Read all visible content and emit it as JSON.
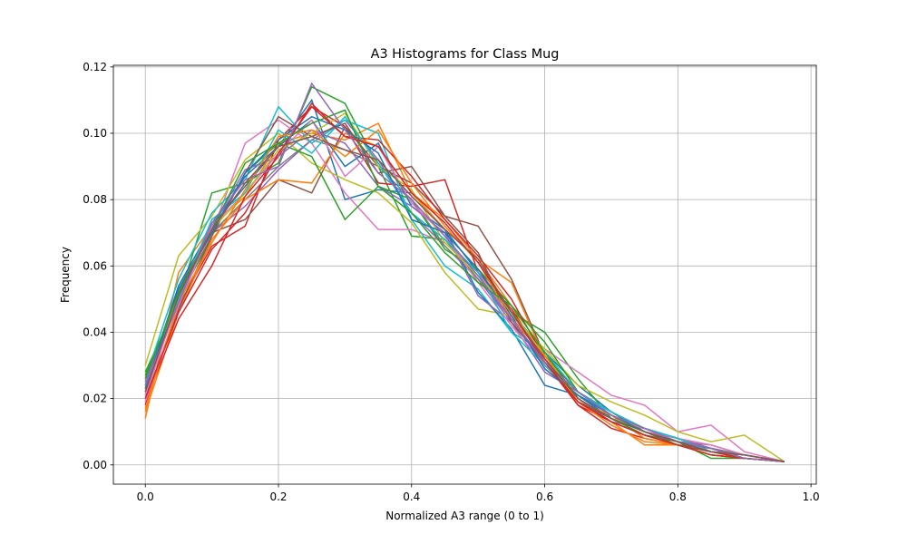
{
  "chart_data": {
    "type": "line",
    "title": "A3 Histograms for Class Mug",
    "xlabel": "Normalized A3 range (0 to 1)",
    "ylabel": "Frequency",
    "xlim": [
      -0.048,
      1.008
    ],
    "ylim": [
      -0.0058,
      0.1205
    ],
    "xticks": [
      0.0,
      0.2,
      0.4,
      0.6,
      0.8,
      1.0
    ],
    "xtick_labels": [
      "0.0",
      "0.2",
      "0.4",
      "0.6",
      "0.8",
      "1.0"
    ],
    "yticks": [
      0.0,
      0.02,
      0.04,
      0.06,
      0.08,
      0.1,
      0.12
    ],
    "ytick_labels": [
      "0.00",
      "0.02",
      "0.04",
      "0.06",
      "0.08",
      "0.10",
      "0.12"
    ],
    "grid": true,
    "legend": "none",
    "x": [
      0.0,
      0.05,
      0.1,
      0.15,
      0.2,
      0.25,
      0.3,
      0.35,
      0.4,
      0.45,
      0.5,
      0.55,
      0.6,
      0.65,
      0.7,
      0.75,
      0.8,
      0.85,
      0.9,
      0.96
    ],
    "series": [
      {
        "color": "#1f77b4",
        "values": [
          0.022,
          0.052,
          0.072,
          0.084,
          0.096,
          0.11,
          0.08,
          0.083,
          0.082,
          0.071,
          0.058,
          0.046,
          0.034,
          0.024,
          0.016,
          0.01,
          0.007,
          0.004,
          0.002,
          0.001
        ]
      },
      {
        "color": "#ff7f0e",
        "values": [
          0.014,
          0.058,
          0.072,
          0.081,
          0.097,
          0.1,
          0.098,
          0.103,
          0.082,
          0.071,
          0.062,
          0.048,
          0.03,
          0.02,
          0.013,
          0.006,
          0.006,
          0.004,
          0.002,
          0.001
        ]
      },
      {
        "color": "#2ca02c",
        "values": [
          0.028,
          0.05,
          0.082,
          0.085,
          0.091,
          0.114,
          0.109,
          0.09,
          0.069,
          0.068,
          0.056,
          0.046,
          0.04,
          0.026,
          0.014,
          0.009,
          0.007,
          0.002,
          0.002,
          0.001
        ]
      },
      {
        "color": "#d62728",
        "values": [
          0.018,
          0.048,
          0.066,
          0.072,
          0.098,
          0.108,
          0.102,
          0.085,
          0.084,
          0.086,
          0.058,
          0.047,
          0.031,
          0.018,
          0.011,
          0.008,
          0.006,
          0.004,
          0.002,
          0.001
        ]
      },
      {
        "color": "#9467bd",
        "values": [
          0.022,
          0.052,
          0.07,
          0.078,
          0.089,
          0.098,
          0.104,
          0.092,
          0.076,
          0.066,
          0.056,
          0.043,
          0.028,
          0.022,
          0.016,
          0.011,
          0.008,
          0.005,
          0.003,
          0.001
        ]
      },
      {
        "color": "#8c564b",
        "values": [
          0.021,
          0.05,
          0.07,
          0.074,
          0.086,
          0.082,
          0.102,
          0.09,
          0.085,
          0.075,
          0.072,
          0.056,
          0.033,
          0.022,
          0.016,
          0.01,
          0.006,
          0.005,
          0.003,
          0.001
        ]
      },
      {
        "color": "#e377c2",
        "values": [
          0.021,
          0.05,
          0.07,
          0.097,
          0.104,
          0.097,
          0.082,
          0.071,
          0.071,
          0.067,
          0.058,
          0.044,
          0.035,
          0.028,
          0.021,
          0.018,
          0.01,
          0.012,
          0.004,
          0.001
        ]
      },
      {
        "color": "#7f7f7f",
        "values": [
          0.024,
          0.054,
          0.07,
          0.08,
          0.09,
          0.098,
          0.095,
          0.09,
          0.08,
          0.066,
          0.056,
          0.044,
          0.03,
          0.021,
          0.014,
          0.011,
          0.008,
          0.005,
          0.003,
          0.001
        ]
      },
      {
        "color": "#bcbd22",
        "values": [
          0.03,
          0.063,
          0.075,
          0.092,
          0.1,
          0.091,
          0.086,
          0.082,
          0.073,
          0.058,
          0.047,
          0.045,
          0.035,
          0.024,
          0.019,
          0.015,
          0.01,
          0.007,
          0.009,
          0.001
        ]
      },
      {
        "color": "#17becf",
        "values": [
          0.026,
          0.056,
          0.076,
          0.086,
          0.108,
          0.097,
          0.104,
          0.1,
          0.074,
          0.06,
          0.053,
          0.04,
          0.034,
          0.022,
          0.016,
          0.011,
          0.008,
          0.004,
          0.003,
          0.001
        ]
      },
      {
        "color": "#1f77b4",
        "values": [
          0.023,
          0.054,
          0.072,
          0.087,
          0.096,
          0.104,
          0.09,
          0.097,
          0.078,
          0.071,
          0.052,
          0.041,
          0.024,
          0.021,
          0.014,
          0.01,
          0.007,
          0.005,
          0.002,
          0.001
        ]
      },
      {
        "color": "#ff7f0e",
        "values": [
          0.016,
          0.046,
          0.068,
          0.08,
          0.086,
          0.085,
          0.1,
          0.096,
          0.082,
          0.074,
          0.062,
          0.055,
          0.032,
          0.019,
          0.015,
          0.008,
          0.006,
          0.003,
          0.002,
          0.001
        ]
      },
      {
        "color": "#2ca02c",
        "values": [
          0.027,
          0.05,
          0.069,
          0.088,
          0.097,
          0.093,
          0.074,
          0.084,
          0.08,
          0.065,
          0.059,
          0.048,
          0.037,
          0.022,
          0.015,
          0.01,
          0.007,
          0.004,
          0.003,
          0.001
        ]
      },
      {
        "color": "#d62728",
        "values": [
          0.019,
          0.044,
          0.06,
          0.081,
          0.093,
          0.109,
          0.099,
          0.098,
          0.087,
          0.074,
          0.063,
          0.05,
          0.032,
          0.018,
          0.013,
          0.009,
          0.006,
          0.004,
          0.002,
          0.001
        ]
      },
      {
        "color": "#9467bd",
        "values": [
          0.025,
          0.051,
          0.072,
          0.089,
          0.093,
          0.101,
          0.097,
          0.084,
          0.078,
          0.07,
          0.051,
          0.043,
          0.032,
          0.02,
          0.013,
          0.011,
          0.007,
          0.006,
          0.003,
          0.001
        ]
      },
      {
        "color": "#8c564b",
        "values": [
          0.02,
          0.047,
          0.069,
          0.088,
          0.105,
          0.099,
          0.103,
          0.088,
          0.09,
          0.075,
          0.064,
          0.043,
          0.031,
          0.019,
          0.014,
          0.009,
          0.006,
          0.004,
          0.003,
          0.001
        ]
      },
      {
        "color": "#e377c2",
        "values": [
          0.019,
          0.048,
          0.072,
          0.082,
          0.094,
          0.104,
          0.087,
          0.096,
          0.079,
          0.069,
          0.055,
          0.042,
          0.03,
          0.021,
          0.015,
          0.01,
          0.008,
          0.006,
          0.003,
          0.001
        ]
      },
      {
        "color": "#bcbd22",
        "values": [
          0.022,
          0.052,
          0.071,
          0.082,
          0.095,
          0.1,
          0.106,
          0.09,
          0.083,
          0.067,
          0.057,
          0.046,
          0.033,
          0.02,
          0.014,
          0.011,
          0.007,
          0.005,
          0.002,
          0.001
        ]
      },
      {
        "color": "#17becf",
        "values": [
          0.024,
          0.05,
          0.074,
          0.082,
          0.101,
          0.094,
          0.105,
          0.091,
          0.076,
          0.068,
          0.058,
          0.04,
          0.03,
          0.021,
          0.016,
          0.011,
          0.008,
          0.004,
          0.003,
          0.001
        ]
      },
      {
        "color": "#1f77b4",
        "values": [
          0.023,
          0.053,
          0.07,
          0.088,
          0.098,
          0.105,
          0.101,
          0.094,
          0.074,
          0.07,
          0.059,
          0.045,
          0.029,
          0.021,
          0.015,
          0.01,
          0.007,
          0.005,
          0.002,
          0.001
        ]
      },
      {
        "color": "#ff7f0e",
        "values": [
          0.017,
          0.049,
          0.067,
          0.083,
          0.099,
          0.101,
          0.093,
          0.101,
          0.085,
          0.072,
          0.061,
          0.044,
          0.033,
          0.019,
          0.012,
          0.007,
          0.006,
          0.003,
          0.002,
          0.001
        ]
      },
      {
        "color": "#2ca02c",
        "values": [
          0.026,
          0.052,
          0.071,
          0.091,
          0.097,
          0.103,
          0.107,
          0.084,
          0.076,
          0.064,
          0.055,
          0.048,
          0.034,
          0.02,
          0.014,
          0.009,
          0.006,
          0.003,
          0.002,
          0.001
        ]
      },
      {
        "color": "#d62728",
        "values": [
          0.02,
          0.046,
          0.065,
          0.076,
          0.094,
          0.108,
          0.099,
          0.096,
          0.082,
          0.073,
          0.061,
          0.046,
          0.031,
          0.019,
          0.013,
          0.009,
          0.006,
          0.003,
          0.002,
          0.001
        ]
      },
      {
        "color": "#9467bd",
        "values": [
          0.024,
          0.049,
          0.073,
          0.086,
          0.09,
          0.115,
          0.101,
          0.088,
          0.08,
          0.069,
          0.057,
          0.044,
          0.031,
          0.022,
          0.015,
          0.011,
          0.007,
          0.005,
          0.002,
          0.001
        ]
      },
      {
        "color": "#8c564b",
        "values": [
          0.022,
          0.051,
          0.071,
          0.085,
          0.096,
          0.099,
          0.095,
          0.092,
          0.081,
          0.071,
          0.062,
          0.046,
          0.032,
          0.02,
          0.014,
          0.01,
          0.007,
          0.004,
          0.003,
          0.001
        ]
      }
    ]
  }
}
